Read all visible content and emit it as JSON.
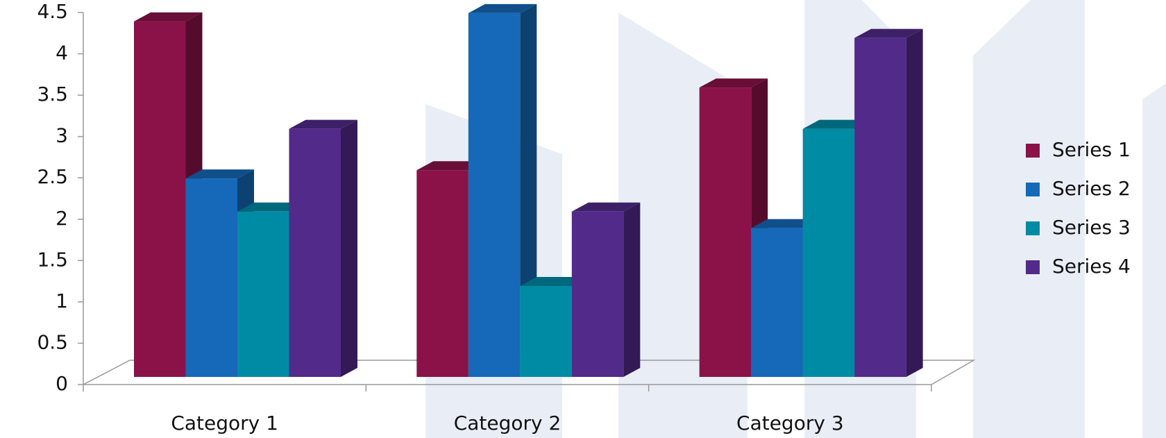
{
  "chart_data": {
    "type": "bar3d",
    "categories": [
      "Category 1",
      "Category 2",
      "Category 3"
    ],
    "series": [
      {
        "name": "Series 1",
        "color": "#8a1249",
        "values": [
          4.3,
          2.5,
          3.5
        ]
      },
      {
        "name": "Series 2",
        "color": "#1569b8",
        "values": [
          2.4,
          4.4,
          1.8
        ]
      },
      {
        "name": "Series 3",
        "color": "#008ba5",
        "values": [
          2,
          1.1,
          3
        ]
      },
      {
        "name": "Series 4",
        "color": "#522a8a",
        "values": [
          3,
          2,
          4.1
        ]
      }
    ],
    "ylim": [
      0,
      4.5
    ],
    "yticks": [
      0,
      0.5,
      1,
      1.5,
      2,
      2.5,
      3,
      3.5,
      4,
      4.5
    ],
    "legend": "right"
  }
}
